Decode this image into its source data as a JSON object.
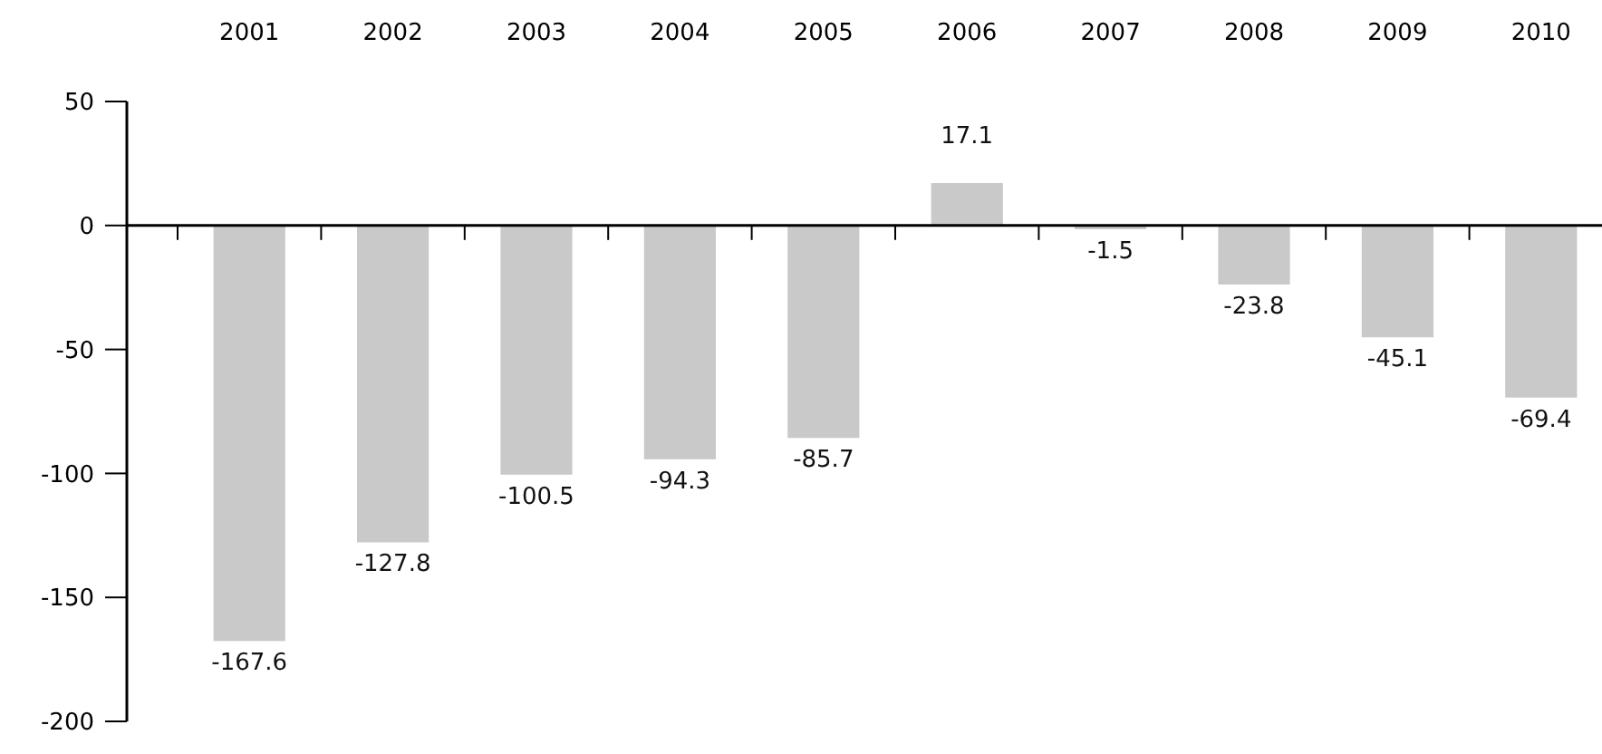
{
  "chart_data": {
    "type": "bar",
    "categories": [
      "2001",
      "2002",
      "2003",
      "2004",
      "2005",
      "2006",
      "2007",
      "2008",
      "2009",
      "2010"
    ],
    "values": [
      -167.6,
      -127.8,
      -100.5,
      -94.3,
      -85.7,
      17.1,
      -1.5,
      -23.8,
      -45.1,
      -69.4
    ],
    "color": "#c9c9c9",
    "ylim": [
      -200,
      50
    ],
    "yticks": [
      -200,
      -150,
      -100,
      -50,
      0,
      50
    ],
    "data_labels": true
  }
}
